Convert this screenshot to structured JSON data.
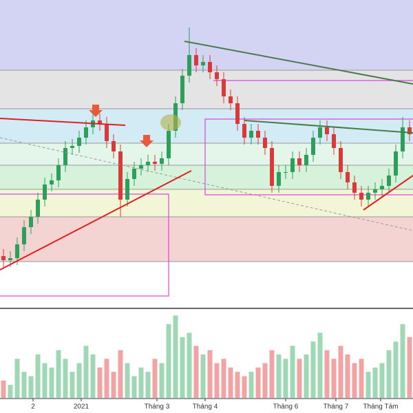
{
  "chart_data": {
    "type": "candlestick",
    "open": [
      23.4,
      23.1,
      23.25,
      24.25,
      25.5,
      26.25,
      27.5,
      28.6,
      28.9,
      30.0,
      31.25,
      31.4,
      32.0,
      32.75,
      33.25,
      33.0,
      31.75,
      31.0,
      27.5,
      29.0,
      29.75,
      30.0,
      30.25,
      30.1,
      30.5,
      32.5,
      34.5,
      36.5,
      38.0,
      37.25,
      37.5,
      36.75,
      36.25,
      35.0,
      34.5,
      33.0,
      32.0,
      32.5,
      32.0,
      31.25,
      28.5,
      29.5,
      29.5,
      30.5,
      30.0,
      30.75,
      32.0,
      32.75,
      32.25,
      31.25,
      29.5,
      28.75,
      28.0,
      27.5,
      28.0,
      28.25,
      28.5,
      29.25,
      31.0,
      32.75
    ],
    "high": [
      23.9,
      23.75,
      24.75,
      26.0,
      26.75,
      28.0,
      29.1,
      29.4,
      30.5,
      31.75,
      31.9,
      32.5,
      33.25,
      34.0,
      33.75,
      33.5,
      32.25,
      31.5,
      29.5,
      30.25,
      30.5,
      30.75,
      30.75,
      31.0,
      33.0,
      35.0,
      37.0,
      40.0,
      38.5,
      38.0,
      38.0,
      37.25,
      36.75,
      35.5,
      35.0,
      33.5,
      33.0,
      33.0,
      32.5,
      31.75,
      30.0,
      30.0,
      31.0,
      31.0,
      31.25,
      32.5,
      33.25,
      33.25,
      32.75,
      31.75,
      30.0,
      29.25,
      28.5,
      28.5,
      28.75,
      29.0,
      29.75,
      31.5,
      33.5,
      33.25
    ],
    "low": [
      22.6,
      22.6,
      22.75,
      23.75,
      25.0,
      25.75,
      27.0,
      28.1,
      28.4,
      29.5,
      30.75,
      30.9,
      31.5,
      32.25,
      32.5,
      31.25,
      30.5,
      26.25,
      27.0,
      28.5,
      29.25,
      29.5,
      29.6,
      29.6,
      30.0,
      32.0,
      34.0,
      36.0,
      36.75,
      36.75,
      36.25,
      35.75,
      34.5,
      34.0,
      32.5,
      31.5,
      31.5,
      31.5,
      30.75,
      28.0,
      28.0,
      29.0,
      29.0,
      29.5,
      29.5,
      30.25,
      31.5,
      31.75,
      30.75,
      29.0,
      28.25,
      27.5,
      27.0,
      27.0,
      27.5,
      27.75,
      28.0,
      28.75,
      30.5,
      31.75
    ],
    "close": [
      23.1,
      23.25,
      24.25,
      25.5,
      26.25,
      27.5,
      28.6,
      28.9,
      30.0,
      31.25,
      31.4,
      32.0,
      32.75,
      33.25,
      33.0,
      31.75,
      31.0,
      27.5,
      29.0,
      29.75,
      30.0,
      30.25,
      30.1,
      30.5,
      32.5,
      34.5,
      36.5,
      38.0,
      37.25,
      37.5,
      36.75,
      36.25,
      35.0,
      34.5,
      33.0,
      32.0,
      32.5,
      32.0,
      31.25,
      28.5,
      29.5,
      29.5,
      30.5,
      30.0,
      30.75,
      32.0,
      32.75,
      32.25,
      31.25,
      29.5,
      28.75,
      28.0,
      27.5,
      28.0,
      28.25,
      28.5,
      29.25,
      31.0,
      32.75,
      32.25
    ],
    "volume": [
      20,
      15,
      45,
      30,
      25,
      50,
      40,
      35,
      55,
      45,
      30,
      40,
      60,
      50,
      35,
      45,
      30,
      55,
      40,
      25,
      35,
      30,
      45,
      40,
      85,
      95,
      70,
      75,
      60,
      50,
      55,
      40,
      45,
      35,
      30,
      25,
      30,
      35,
      40,
      55,
      50,
      45,
      60,
      45,
      50,
      65,
      75,
      55,
      45,
      60,
      50,
      40,
      45,
      30,
      35,
      40,
      55,
      65,
      85,
      70
    ],
    "ylim": [
      20,
      42
    ],
    "volume_lim": [
      0,
      100
    ],
    "xlim": [
      -0.5,
      59.5
    ],
    "xticks": [
      {
        "value": 4.3,
        "label": "2"
      },
      {
        "value": 11.3,
        "label": "2021"
      },
      {
        "value": 22.3,
        "label": "Tháng 3"
      },
      {
        "value": 29.3,
        "label": "Tháng 4"
      },
      {
        "value": 41.0,
        "label": "Tháng 6"
      },
      {
        "value": 48.3,
        "label": "Tháng 7"
      },
      {
        "value": 54.8,
        "label": "Tháng Tám"
      }
    ],
    "up_color": "#2e9e5b",
    "down_color": "#d83a3a",
    "volume_up_color": "#9fd8b4",
    "volume_down_color": "#f2a3a3"
  }
}
